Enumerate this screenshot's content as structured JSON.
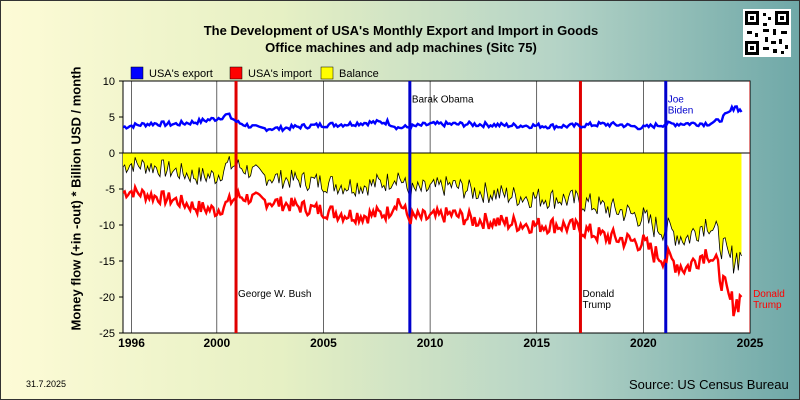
{
  "title_line1": "The Development of USA's Monthly Export and Import in Goods",
  "title_line2": "Office machines and adp machines (Sitc 75)",
  "ylabel": "Money flow (+in -out) * Billion USD / month",
  "date_stamp": "31.7.2025",
  "source": "Source: US Census Bureau",
  "colors": {
    "export": "#0000ff",
    "import": "#ff0000",
    "balance": "#ffff00",
    "president_line_red": "#e00000",
    "president_line_blue": "#0000cc"
  },
  "chart_data": {
    "type": "line",
    "title": "The Development of USA's Monthly Export and Import in Goods — Office machines and adp machines (Sitc 75)",
    "xlabel": "",
    "ylabel": "Money flow (+in -out) * Billion USD / month",
    "xlim": [
      1995.6,
      2025.0
    ],
    "ylim": [
      -25,
      10
    ],
    "x_ticks": [
      "1996",
      "2000",
      "2005",
      "2010",
      "2015",
      "2020",
      "2025"
    ],
    "x_tick_values": [
      1996,
      2000,
      2005,
      2010,
      2015,
      2020,
      2025
    ],
    "y_ticks": [
      "10",
      "5",
      "0",
      "-5",
      "-10",
      "-15",
      "-20",
      "-25"
    ],
    "y_tick_values": [
      10,
      5,
      0,
      -5,
      -10,
      -15,
      -20,
      -25
    ],
    "grid": "vertical lines at years",
    "legend": {
      "placement": "top-left",
      "entries": [
        "USA's export",
        "USA's import",
        "Balance"
      ]
    },
    "series": [
      {
        "name": "USA's export",
        "x": [
          1995.6,
          1996,
          1997,
          1998,
          1999,
          2000,
          2000.5,
          2001,
          2002,
          2003,
          2004,
          2005,
          2006,
          2007,
          2008,
          2008.5,
          2009,
          2010,
          2011,
          2012,
          2013,
          2014,
          2015,
          2016,
          2017,
          2018,
          2019,
          2020,
          2020.5,
          2021,
          2022,
          2023,
          2023.5,
          2024,
          2024.3,
          2024.6
        ],
        "values": [
          3.6,
          3.8,
          4.1,
          4.0,
          4.3,
          4.8,
          5.3,
          4.2,
          3.4,
          3.4,
          3.7,
          3.9,
          4.0,
          4.2,
          4.3,
          3.5,
          3.6,
          4.0,
          4.0,
          4.0,
          3.9,
          3.8,
          3.8,
          3.7,
          3.8,
          4.0,
          3.9,
          3.5,
          3.8,
          4.0,
          4.1,
          4.1,
          4.4,
          5.5,
          6.6,
          5.7
        ]
      },
      {
        "name": "USA's import",
        "x": [
          1995.6,
          1996,
          1997,
          1998,
          1999,
          2000,
          2000.5,
          2001,
          2002,
          2003,
          2004,
          2005,
          2006,
          2007,
          2008,
          2008.5,
          2009,
          2010,
          2011,
          2012,
          2013,
          2014,
          2015,
          2016,
          2017,
          2018,
          2019,
          2020,
          2020.5,
          2021,
          2022,
          2023,
          2023.5,
          2024,
          2024.3,
          2024.6
        ],
        "values": [
          -5.5,
          -5.3,
          -6.0,
          -6.5,
          -7.5,
          -8.0,
          -7.0,
          -6.0,
          -6.5,
          -7.0,
          -7.5,
          -8.0,
          -8.5,
          -8.7,
          -8.3,
          -6.5,
          -9.0,
          -9.0,
          -8.5,
          -9.3,
          -9.5,
          -9.8,
          -10.0,
          -10.0,
          -10.5,
          -11.5,
          -12.0,
          -12.5,
          -14.0,
          -14.5,
          -16.0,
          -13.5,
          -16.0,
          -20.5,
          -21.0,
          -20.0
        ]
      },
      {
        "name": "Balance",
        "x": [
          1995.6,
          1996,
          1997,
          1998,
          1999,
          2000,
          2000.5,
          2001,
          2002,
          2003,
          2004,
          2005,
          2006,
          2007,
          2008,
          2008.5,
          2009,
          2010,
          2011,
          2012,
          2013,
          2014,
          2015,
          2016,
          2017,
          2018,
          2019,
          2020,
          2020.5,
          2021,
          2022,
          2023,
          2023.5,
          2024,
          2024.3,
          2024.6
        ],
        "values": [
          -1.9,
          -1.5,
          -1.9,
          -2.5,
          -3.2,
          -3.2,
          -1.7,
          -1.8,
          -3.1,
          -3.6,
          -3.8,
          -4.1,
          -4.5,
          -4.5,
          -4.0,
          -3.0,
          -5.4,
          -5.0,
          -4.5,
          -5.3,
          -5.6,
          -6.0,
          -6.2,
          -6.3,
          -6.7,
          -7.5,
          -8.1,
          -9.0,
          -10.2,
          -10.5,
          -11.9,
          -9.4,
          -11.6,
          -15.0,
          -14.4,
          -14.3
        ]
      }
    ],
    "annotations": [
      {
        "label": "George W. Bush",
        "x": 2000.9,
        "line_color": "red",
        "label_y": -20
      },
      {
        "label": "Barak Obama",
        "x": 2009.05,
        "line_color": "blue",
        "label_y": 7
      },
      {
        "label": "Donald Trump",
        "x": 2017.05,
        "line_color": "red",
        "label_y": -20
      },
      {
        "label": "Joe Biden",
        "x": 2021.05,
        "line_color": "blue",
        "label_y": 7
      },
      {
        "label": "Donald Trump",
        "x": 2025.05,
        "line_color": "red",
        "label_y": -20
      }
    ]
  }
}
